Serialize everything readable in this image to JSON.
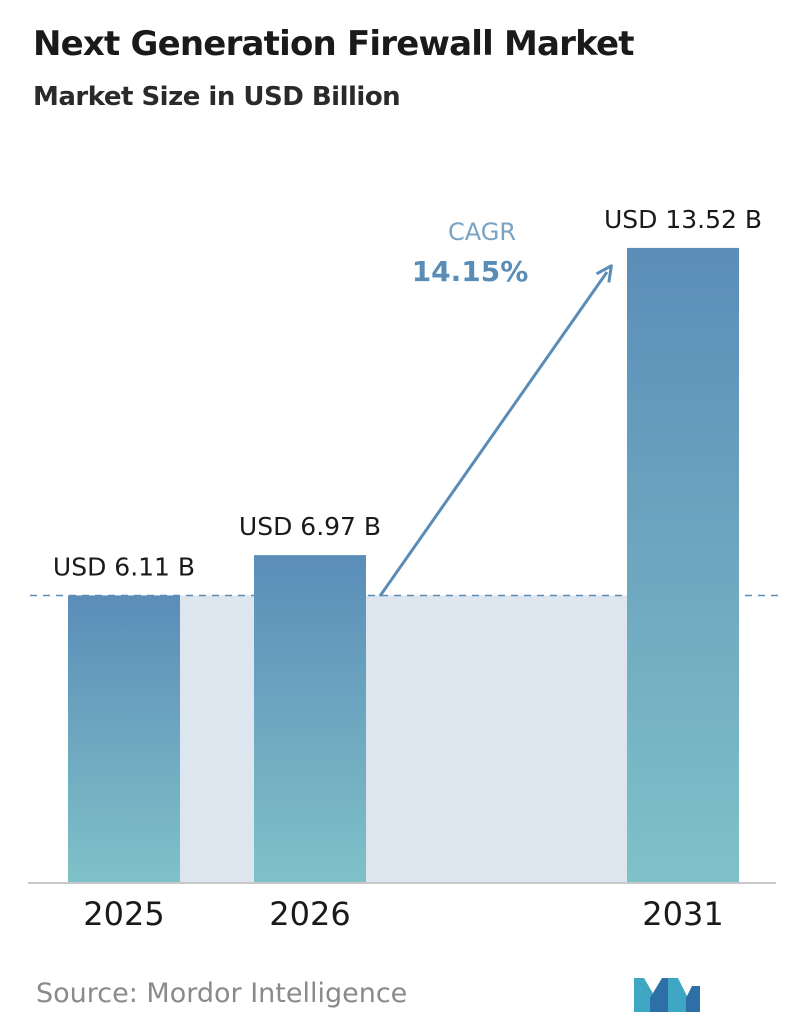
{
  "title": "Next Generation Firewall Market",
  "subtitle": "Market Size in USD Billion",
  "source": "Source:  Mordor Intelligence",
  "logo_icon": "mordor-intelligence-logo",
  "chart_data": {
    "type": "bar",
    "categories": [
      "2025",
      "2026",
      "2031"
    ],
    "values": [
      6.11,
      6.97,
      13.52
    ],
    "value_labels": [
      "USD 6.11 B",
      "USD 6.97 B",
      "USD 13.52 B"
    ],
    "cagr_label": "CAGR",
    "cagr_value": "14.15%",
    "baseline_dashed_at": 6.11,
    "grid": false,
    "legend": "none",
    "colors": {
      "bar_top": "#5b8db8",
      "bar_bottom": "#7fc1c8",
      "shade": "#dde6ef",
      "arrow": "#5a8cb5",
      "cagr_label": "#7aa3c3",
      "cagr_value": "#5a8cb5"
    }
  }
}
